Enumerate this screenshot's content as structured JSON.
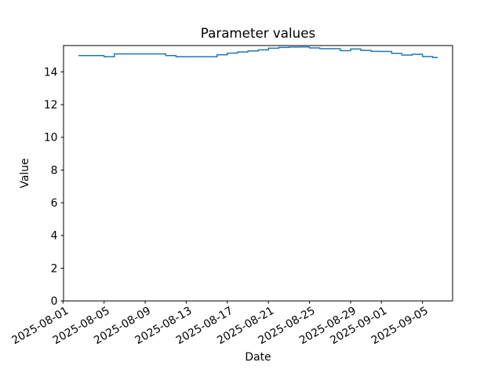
{
  "figure": {
    "background": "#ffffff",
    "frame_color": "#000000",
    "text_color": "#000000"
  },
  "chart_data": {
    "type": "line",
    "title": "Parameter values",
    "xlabel": "Date",
    "ylabel": "Value",
    "grid": false,
    "legend": "none",
    "line_style": "steps-mid",
    "line_color": "#1f77b4",
    "ylim": [
      0,
      15.61
    ],
    "y_ticks": [
      0,
      2,
      4,
      6,
      8,
      10,
      12,
      14
    ],
    "y_tick_labels": [
      "0",
      "2",
      "4",
      "6",
      "8",
      "10",
      "12",
      "14"
    ],
    "x_tick_labels": [
      "2025-08-01",
      "2025-08-05",
      "2025-08-09",
      "2025-08-13",
      "2025-08-17",
      "2025-08-21",
      "2025-08-25",
      "2025-08-29",
      "2025-09-01",
      "2025-09-05"
    ],
    "x_tick_rotation_deg": 30,
    "series": [
      {
        "name": "Parameter values",
        "color": "#1f77b4",
        "dates": [
          "2025-08-02",
          "2025-08-03",
          "2025-08-04",
          "2025-08-05",
          "2025-08-06",
          "2025-08-07",
          "2025-08-08",
          "2025-08-09",
          "2025-08-10",
          "2025-08-11",
          "2025-08-12",
          "2025-08-13",
          "2025-08-14",
          "2025-08-15",
          "2025-08-16",
          "2025-08-17",
          "2025-08-18",
          "2025-08-19",
          "2025-08-20",
          "2025-08-21",
          "2025-08-22",
          "2025-08-23",
          "2025-08-24",
          "2025-08-25",
          "2025-08-26",
          "2025-08-27",
          "2025-08-28",
          "2025-08-29",
          "2025-08-30",
          "2025-08-31",
          "2025-09-01",
          "2025-09-02",
          "2025-09-03",
          "2025-09-04",
          "2025-09-05",
          "2025-09-06"
        ],
        "values": [
          15.0,
          15.0,
          15.0,
          14.93,
          15.1,
          15.1,
          15.1,
          15.1,
          15.1,
          15.0,
          14.93,
          14.93,
          14.93,
          14.93,
          15.05,
          15.15,
          15.22,
          15.28,
          15.35,
          15.45,
          15.5,
          15.52,
          15.53,
          15.47,
          15.42,
          15.42,
          15.3,
          15.4,
          15.32,
          15.26,
          15.25,
          15.13,
          15.03,
          15.08,
          14.94,
          14.88
        ]
      }
    ]
  }
}
